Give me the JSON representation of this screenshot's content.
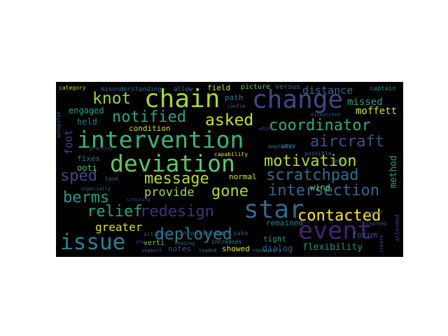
{
  "words": {
    "intervention": {
      "text": "intervention",
      "color": "#35b779"
    },
    "deviation": {
      "text": "deviation",
      "color": "#5ec962"
    },
    "chain": {
      "text": "chain",
      "color": "#a0da39"
    },
    "change": {
      "text": "change",
      "color": "#3e4989"
    },
    "event": {
      "text": "event",
      "color": "#482173"
    },
    "issue": {
      "text": "issue",
      "color": "#26828e"
    },
    "star": {
      "text": "star",
      "color": "#31688e"
    },
    "knot": {
      "text": "knot",
      "color": "#90d743"
    },
    "notified": {
      "text": "notified",
      "color": "#21a585"
    },
    "asked": {
      "text": "asked",
      "color": "#c8e020"
    },
    "coordinator": {
      "text": "coordinator",
      "color": "#29af7f"
    },
    "aircraft": {
      "text": "aircraft",
      "color": "#3b528b"
    },
    "motivation": {
      "text": "motivation",
      "color": "#b5de2b"
    },
    "scratchpad": {
      "text": "scratchpad",
      "color": "#2d708e"
    },
    "message": {
      "text": "message",
      "color": "#b5de2b"
    },
    "sped": {
      "text": "sped",
      "color": "#3e4989"
    },
    "gone": {
      "text": "gone",
      "color": "#addc30"
    },
    "intersection": {
      "text": "intersection",
      "color": "#31688e"
    },
    "berms": {
      "text": "berms",
      "color": "#1f9e89"
    },
    "relief": {
      "text": "relief",
      "color": "#20a486"
    },
    "redesign": {
      "text": "redesign",
      "color": "#472d7b"
    },
    "contacted": {
      "text": "contacted",
      "color": "#fde725"
    },
    "deployed": {
      "text": "deployed",
      "color": "#2a788e"
    },
    "provide": {
      "text": "provide",
      "color": "#a5db36"
    },
    "greater": {
      "text": "greater",
      "color": "#d8e219"
    },
    "distance": {
      "text": "distance",
      "color": "#31688e"
    },
    "missed": {
      "text": "missed",
      "color": "#1f9e89"
    },
    "moffett": {
      "text": "moffett",
      "color": "#c8e020"
    },
    "engaged": {
      "text": "engaged",
      "color": "#20a486"
    },
    "held": {
      "text": "held",
      "color": "#26828e"
    },
    "condition": {
      "text": "condition",
      "color": "#cde11d"
    },
    "fixes": {
      "text": "fixes",
      "color": "#2c728e"
    },
    "ooti": {
      "text": "ooti",
      "color": "#4ac16d"
    },
    "normal": {
      "text": "normal",
      "color": "#d2e21b"
    },
    "wind": {
      "text": "wind",
      "color": "#5ec962"
    },
    "remained": {
      "text": "remained",
      "color": "#26828e"
    },
    "tight": {
      "text": "tight",
      "color": "#1f9e89"
    },
    "dialog": {
      "text": "dialog",
      "color": "#33638d"
    },
    "flexibility": {
      "text": "flexibility",
      "color": "#21918c"
    },
    "forum": {
      "text": "forum",
      "color": "#3e4989"
    },
    "notes": {
      "text": "notes",
      "color": "#3b528b"
    },
    "showed": {
      "text": "showed",
      "color": "#e5e419"
    },
    "field": {
      "text": "field",
      "color": "#d8e219"
    },
    "path": {
      "text": "path",
      "color": "#2a788e"
    },
    "picture": {
      "text": "picture",
      "color": "#5ec962"
    },
    "versus": {
      "text": "versus",
      "color": "#2c728e"
    },
    "captain": {
      "text": "captain",
      "color": "#21918c"
    },
    "category": {
      "text": "category",
      "color": "#b5de2b"
    },
    "misunderstanding": {
      "text": "misunderstanding",
      "color": "#2d708e"
    },
    "allow": {
      "text": "allow",
      "color": "#26828e"
    },
    "capability": {
      "text": "capability",
      "color": "#e5e419"
    },
    "method": {
      "text": "method",
      "color": "#20a486"
    },
    "foot": {
      "text": "foot",
      "color": "#3e4989"
    },
    "inconsistent": {
      "text": "inconsistent",
      "color": "#31688e"
    },
    "increases": {
      "text": "increases",
      "color": "#21918c"
    },
    "verti": {
      "text": "verti",
      "color": "#7ad151"
    },
    "segment": {
      "text": "segment",
      "color": "#3b528b"
    },
    "loaded": {
      "text": "loaded",
      "color": "#2a788e"
    },
    "possible": {
      "text": "possible",
      "color": "#2c728e"
    },
    "learned": {
      "text": "learned",
      "color": "#33638d"
    },
    "attended": {
      "text": "attended",
      "color": "#414487"
    },
    "create": {
      "text": "create",
      "color": "#3b528b"
    },
    "especially": {
      "text": "especially",
      "color": "#31688e"
    },
    "practice": {
      "text": "practice",
      "color": "#3b528b"
    },
    "task": {
      "text": "task",
      "color": "#2c728e"
    },
    "demand": {
      "text": "demand",
      "color": "#3b528b"
    },
    "repository": {
      "text": "repository",
      "color": "#2a788e"
    },
    "data": {
      "text": "data",
      "color": "#31688e"
    },
    "start": {
      "text": "start",
      "color": "#2d708e"
    },
    "altitude": {
      "text": "altitude",
      "color": "#3b528b"
    },
    "crossing": {
      "text": "crossing",
      "color": "#3e4989"
    },
    "leading": {
      "text": "leading",
      "color": "#33638d"
    },
    "emphasis": {
      "text": "emphasis",
      "color": "#31688e"
    },
    "mismatched": {
      "text": "mismatched",
      "color": "#3b528b"
    },
    "autopilot": {
      "text": "autopilot",
      "color": "#2d708e"
    },
    "whiny": {
      "text": "whiny",
      "color": "#3e4989"
    },
    "confim": {
      "text": "confim",
      "color": "#33638d"
    },
    "dfw": {
      "text": "dfw",
      "color": "#3e4989"
    },
    "imav": {
      "text": "imav",
      "color": "#2c728e"
    },
    "vako": {
      "text": "vako",
      "color": "#3b528b"
    }
  }
}
